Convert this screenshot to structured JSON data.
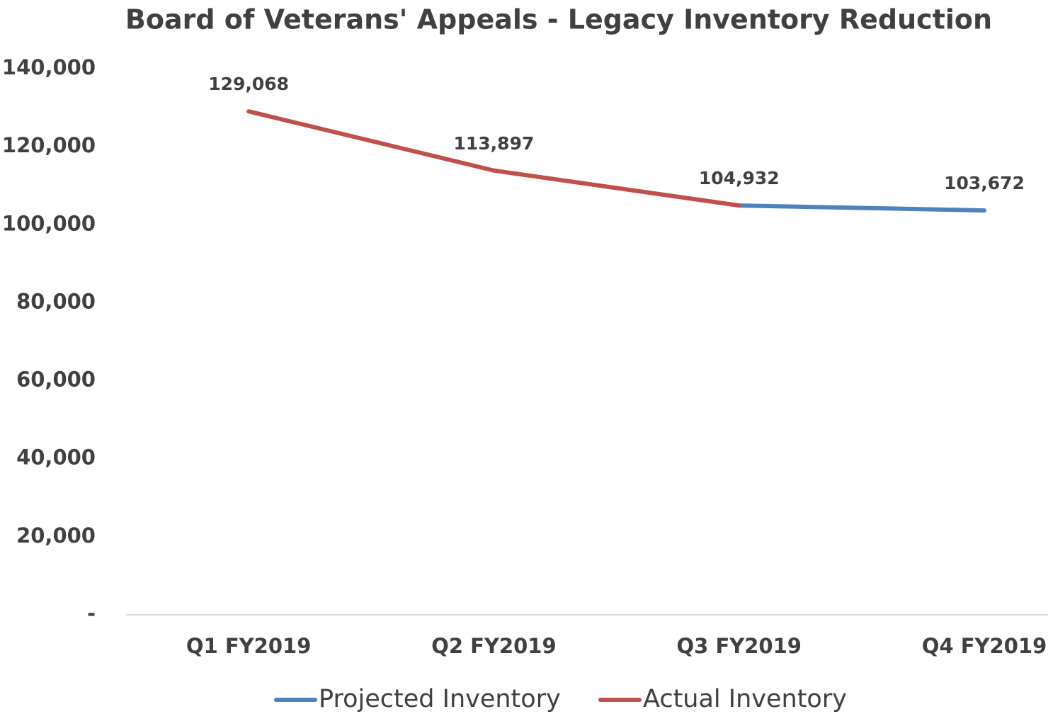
{
  "chart_data": {
    "type": "line",
    "title": "Board of Veterans' Appeals - Legacy Inventory Reduction",
    "categories": [
      "Q1 FY2019",
      "Q2 FY2019",
      "Q3 FY2019",
      "Q4 FY2019"
    ],
    "series": [
      {
        "name": "Projected Inventory",
        "color": "#4f81bd",
        "values": [
          null,
          null,
          104932,
          103672
        ],
        "value_labels": [
          null,
          null,
          null,
          "103,672"
        ]
      },
      {
        "name": "Actual Inventory",
        "color": "#c0504d",
        "values": [
          129068,
          113897,
          104932,
          null
        ],
        "value_labels": [
          "129,068",
          "113,897",
          "104,932",
          null
        ]
      }
    ],
    "ylim": [
      0,
      140000
    ],
    "yticks": [
      {
        "value": 0,
        "label": "-"
      },
      {
        "value": 20000,
        "label": "20,000"
      },
      {
        "value": 40000,
        "label": "40,000"
      },
      {
        "value": 60000,
        "label": "60,000"
      },
      {
        "value": 80000,
        "label": "80,000"
      },
      {
        "value": 100000,
        "label": "100,000"
      },
      {
        "value": 120000,
        "label": "120,000"
      },
      {
        "value": 140000,
        "label": "140,000"
      }
    ],
    "legend": "bottom"
  }
}
